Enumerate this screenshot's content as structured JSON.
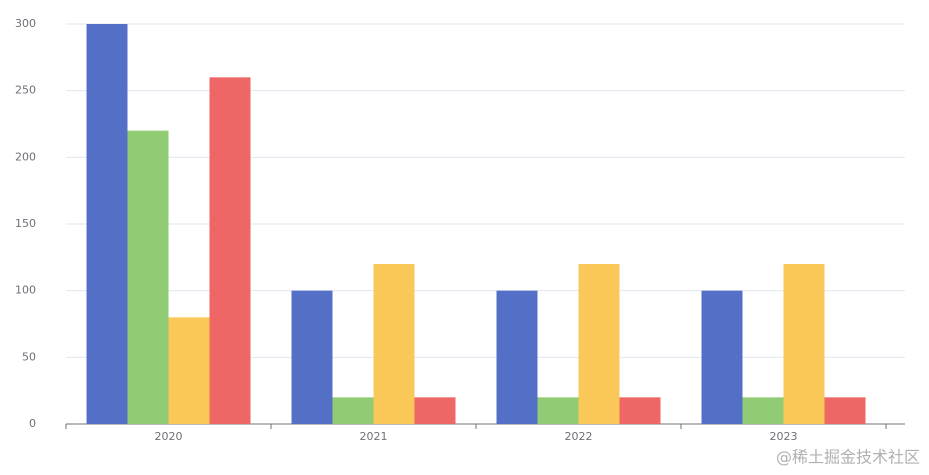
{
  "chart_data": {
    "type": "bar",
    "categories": [
      "2020",
      "2021",
      "2022",
      "2023"
    ],
    "series": [
      {
        "color": "#5470c6",
        "values": [
          300,
          100,
          100,
          100
        ]
      },
      {
        "color": "#91cc75",
        "values": [
          220,
          20,
          20,
          20
        ]
      },
      {
        "color": "#fac858",
        "values": [
          80,
          120,
          120,
          120
        ]
      },
      {
        "color": "#ee6666",
        "values": [
          260,
          20,
          20,
          20
        ]
      }
    ],
    "ylim": [
      0,
      300
    ],
    "yticks": [
      0,
      50,
      100,
      150,
      200,
      250,
      300
    ],
    "grid": true,
    "watermark": "@稀土掘金技术社区"
  }
}
